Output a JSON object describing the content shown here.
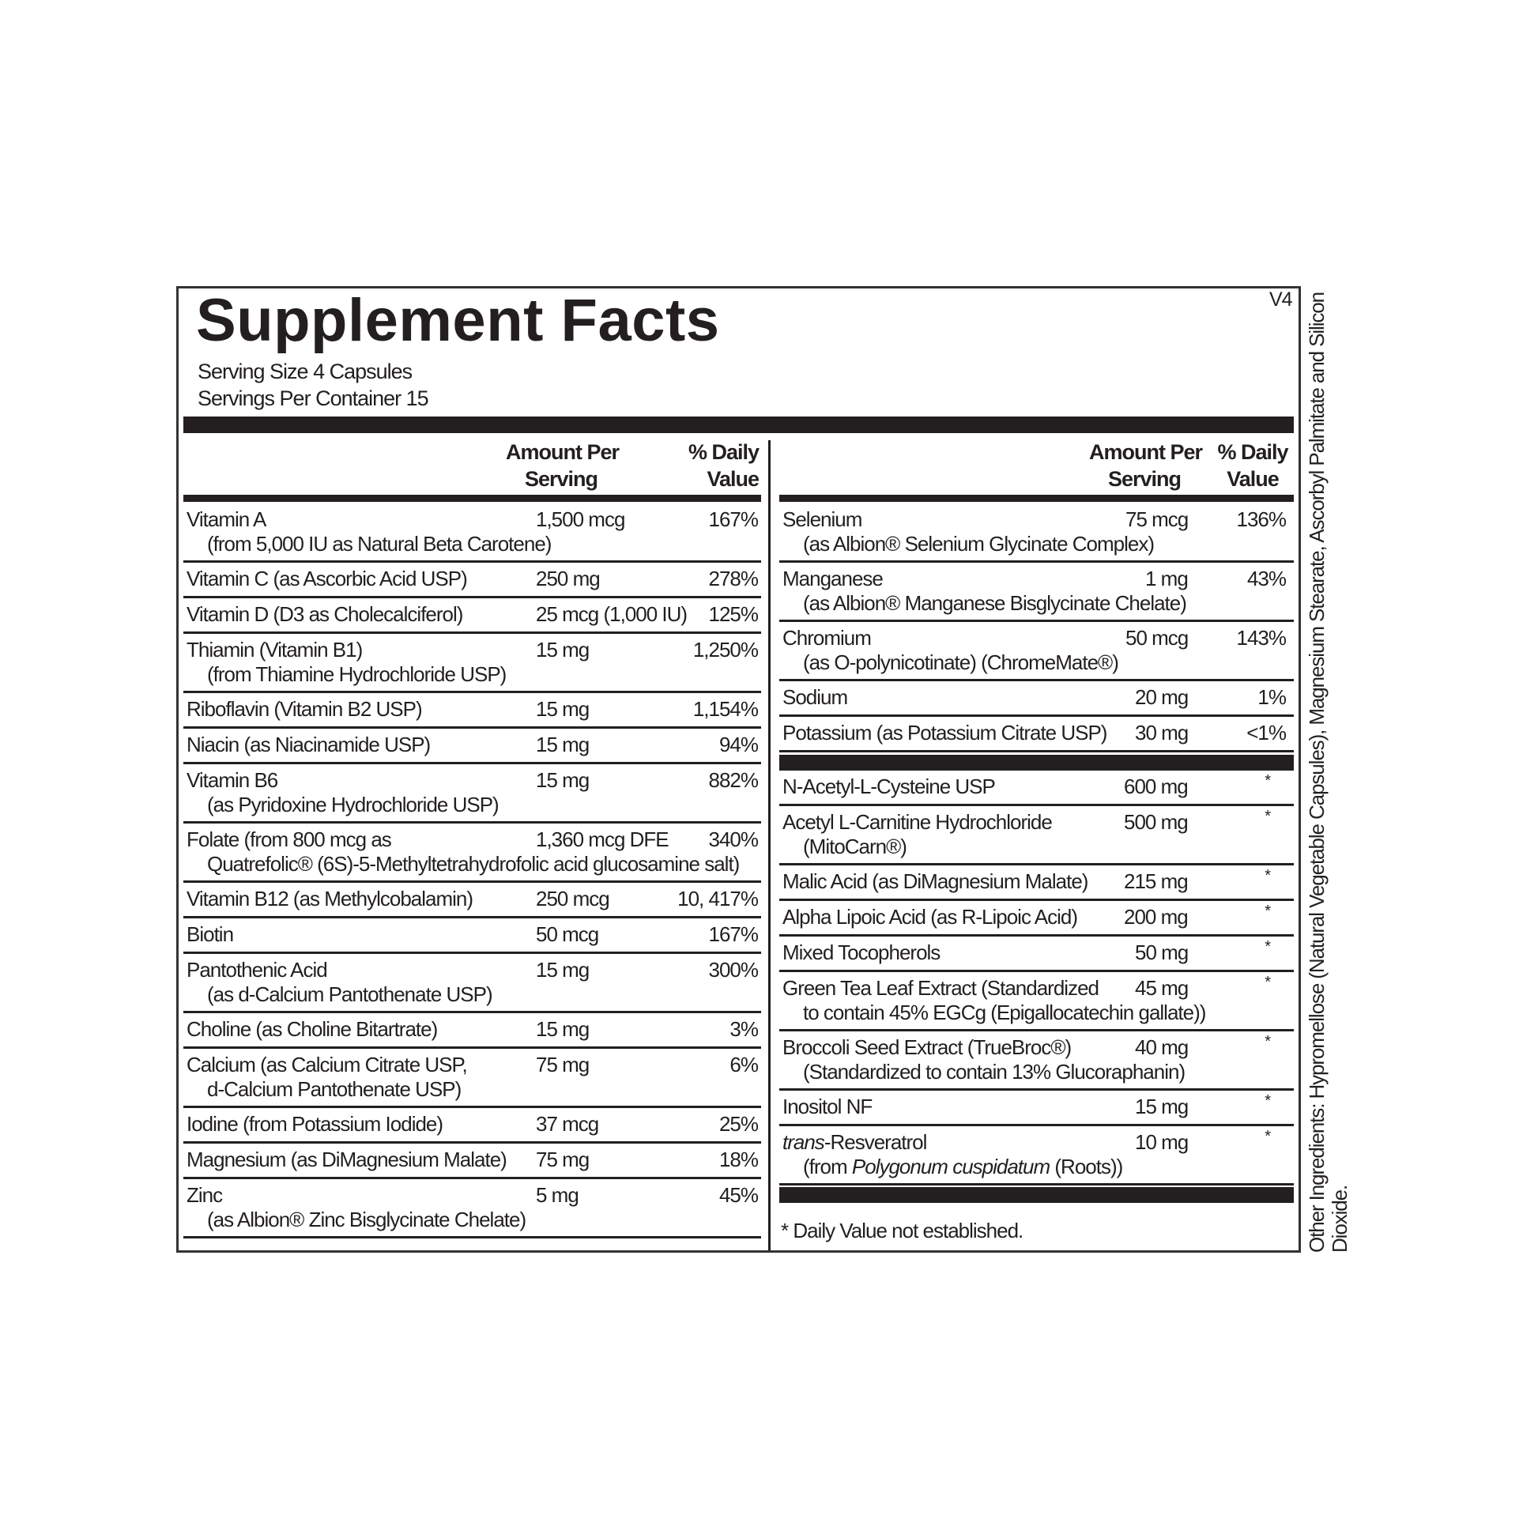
{
  "title": "Supplement Facts",
  "version": "V4",
  "serving_size": "Serving Size  4 Capsules",
  "servings_per_container": "Servings Per Container  15",
  "headers": {
    "amount_line1": "Amount Per",
    "amount_line2": "Serving",
    "dv_line1": "% Daily",
    "dv_line2": "Value"
  },
  "left_rows": [
    {
      "name": [
        {
          "text": "Vitamin A"
        }
      ],
      "sub": [
        {
          "text": "(from 5,000 IU as Natural Beta Carotene)"
        }
      ],
      "amount": "1,500 mcg",
      "dv": "167%"
    },
    {
      "name": [
        {
          "text": "Vitamin C (as Ascorbic Acid USP)"
        }
      ],
      "amount": "250 mg",
      "dv": "278%"
    },
    {
      "name": [
        {
          "text": "Vitamin D (D3 as Cholecalciferol)"
        }
      ],
      "amount": "25 mcg (1,000 IU)",
      "dv": "125%"
    },
    {
      "name": [
        {
          "text": "Thiamin (Vitamin B1)"
        }
      ],
      "sub": [
        {
          "text": "(from Thiamine Hydrochloride USP)"
        }
      ],
      "amount": "15 mg",
      "dv": "1,250%"
    },
    {
      "name": [
        {
          "text": "Riboflavin (Vitamin B2 USP)"
        }
      ],
      "amount": "15 mg",
      "dv": "1,154%"
    },
    {
      "name": [
        {
          "text": "Niacin (as Niacinamide USP)"
        }
      ],
      "amount": "15 mg",
      "dv": "94%"
    },
    {
      "name": [
        {
          "text": "Vitamin B6"
        }
      ],
      "sub": [
        {
          "text": "(as Pyridoxine Hydrochloride USP)"
        }
      ],
      "amount": "15 mg",
      "dv": "882%"
    },
    {
      "name": [
        {
          "text": "Folate (from 800 mcg as"
        }
      ],
      "sub": [
        {
          "text": "Quatrefolic® (6S)-5-Methyltetrahydrofolic acid glucosamine salt)"
        }
      ],
      "amount": "1,360 mcg DFE",
      "dv": "340%"
    },
    {
      "name": [
        {
          "text": "Vitamin B12 (as Methylcobalamin)"
        }
      ],
      "amount": "250 mcg",
      "dv": "10, 417%"
    },
    {
      "name": [
        {
          "text": "Biotin"
        }
      ],
      "amount": "50 mcg",
      "dv": "167%"
    },
    {
      "name": [
        {
          "text": "Pantothenic Acid"
        }
      ],
      "sub": [
        {
          "text": "(as d-Calcium Pantothenate USP)"
        }
      ],
      "amount": "15 mg",
      "dv": "300%"
    },
    {
      "name": [
        {
          "text": "Choline (as Choline Bitartrate)"
        }
      ],
      "amount": "15 mg",
      "dv": "3%"
    },
    {
      "name": [
        {
          "text": "Calcium (as Calcium Citrate USP,"
        }
      ],
      "sub": [
        {
          "text": "d-Calcium Pantothenate USP)"
        }
      ],
      "amount": "75 mg",
      "dv": "6%"
    },
    {
      "name": [
        {
          "text": "Iodine (from Potassium Iodide)"
        }
      ],
      "amount": "37 mcg",
      "dv": "25%"
    },
    {
      "name": [
        {
          "text": "Magnesium (as DiMagnesium Malate)"
        }
      ],
      "amount": "75 mg",
      "dv": "18%"
    },
    {
      "name": [
        {
          "text": "Zinc"
        }
      ],
      "sub": [
        {
          "text": "(as Albion® Zinc Bisglycinate Chelate)"
        }
      ],
      "amount": "5 mg",
      "dv": "45%"
    }
  ],
  "right_rows_top": [
    {
      "name": [
        {
          "text": "Selenium"
        }
      ],
      "sub": [
        {
          "text": "(as Albion® Selenium Glycinate Complex)"
        }
      ],
      "amount": "75 mcg",
      "dv": "136%"
    },
    {
      "name": [
        {
          "text": "Manganese"
        }
      ],
      "sub": [
        {
          "text": "(as Albion® Manganese Bisglycinate Chelate)"
        }
      ],
      "amount": "1 mg",
      "dv": "43%"
    },
    {
      "name": [
        {
          "text": "Chromium"
        }
      ],
      "sub": [
        {
          "text": "(as O-polynicotinate) (ChromeMate®)"
        }
      ],
      "amount": "50 mcg",
      "dv": "143%"
    },
    {
      "name": [
        {
          "text": "Sodium"
        }
      ],
      "amount": "20 mg",
      "dv": "1%"
    },
    {
      "name": [
        {
          "text": "Potassium (as Potassium Citrate USP)"
        }
      ],
      "amount": "30 mg",
      "dv": "<1%"
    }
  ],
  "right_rows_bottom": [
    {
      "name": [
        {
          "text": "N-Acetyl-L-Cysteine USP"
        }
      ],
      "amount": "600 mg",
      "dv": "*"
    },
    {
      "name": [
        {
          "text": "Acetyl L-Carnitine Hydrochloride"
        }
      ],
      "sub": [
        {
          "text": "(MitoCarn®)"
        }
      ],
      "amount": "500 mg",
      "dv": "*"
    },
    {
      "name": [
        {
          "text": "Malic Acid (as DiMagnesium Malate)"
        }
      ],
      "amount": "215 mg",
      "dv": "*"
    },
    {
      "name": [
        {
          "text": "Alpha Lipoic Acid (as R-Lipoic Acid)"
        }
      ],
      "amount": "200 mg",
      "dv": "*"
    },
    {
      "name": [
        {
          "text": "Mixed Tocopherols"
        }
      ],
      "amount": "50 mg",
      "dv": "*"
    },
    {
      "name": [
        {
          "text": "Green Tea Leaf Extract (Standardized"
        }
      ],
      "sub": [
        {
          "text": "to contain 45% EGCg (Epigallocatechin gallate))"
        }
      ],
      "amount": "45 mg",
      "dv": "*"
    },
    {
      "name": [
        {
          "text": "Broccoli Seed Extract (TrueBroc®)"
        }
      ],
      "sub": [
        {
          "text": "(Standardized to contain 13% Glucoraphanin)"
        }
      ],
      "amount": "40 mg",
      "dv": "*"
    },
    {
      "name": [
        {
          "text": "Inositol NF"
        }
      ],
      "amount": "15 mg",
      "dv": "*"
    },
    {
      "name": [
        {
          "text": "trans",
          "italic": true
        },
        {
          "text": "-Resveratrol"
        }
      ],
      "sub": [
        {
          "text": "(from "
        },
        {
          "text": "Polygonum cuspidatum",
          "italic": true
        },
        {
          "text": " (Roots))"
        }
      ],
      "amount": "10 mg",
      "dv": "*"
    }
  ],
  "footnote": "*  Daily Value not established.",
  "other_ingredients": "Other Ingredients: Hypromellose (Natural Vegetable Capsules), Magnesium Stearate, Ascorbyl Palmitate and Silicon Dioxide."
}
